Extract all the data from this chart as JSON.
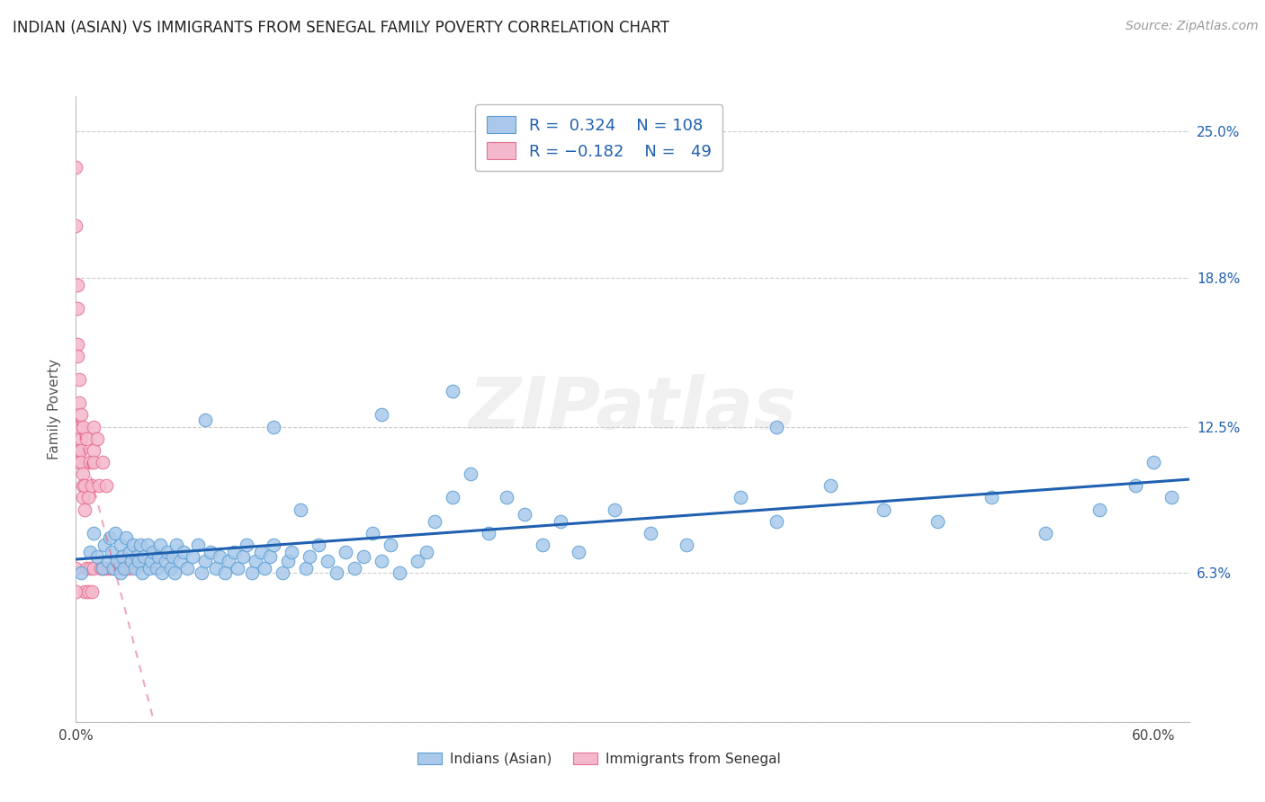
{
  "title": "INDIAN (ASIAN) VS IMMIGRANTS FROM SENEGAL FAMILY POVERTY CORRELATION CHART",
  "source": "Source: ZipAtlas.com",
  "ylabel": "Family Poverty",
  "x_ticks": [
    0.0,
    0.1,
    0.2,
    0.3,
    0.4,
    0.5,
    0.6
  ],
  "x_tick_labels": [
    "0.0%",
    "",
    "",
    "",
    "",
    "",
    "60.0%"
  ],
  "y_ticks": [
    0.0,
    0.063,
    0.125,
    0.188,
    0.25
  ],
  "y_tick_labels_right": [
    "",
    "6.3%",
    "12.5%",
    "18.8%",
    "25.0%"
  ],
  "xlim": [
    0.0,
    0.62
  ],
  "ylim": [
    0.0,
    0.265
  ],
  "blue_R": 0.324,
  "blue_N": 108,
  "pink_R": -0.182,
  "pink_N": 49,
  "blue_color": "#aac9ea",
  "blue_edge_color": "#5a9fd4",
  "blue_line_color": "#2060b0",
  "pink_color": "#f4b8cc",
  "pink_edge_color": "#e87090",
  "pink_line_color": "#e05080",
  "watermark": "ZIPatlas",
  "legend_label_1": "Indians (Asian)",
  "legend_label_2": "Immigrants from Senegal",
  "blue_x": [
    0.003,
    0.008,
    0.01,
    0.012,
    0.015,
    0.016,
    0.018,
    0.019,
    0.02,
    0.021,
    0.022,
    0.023,
    0.025,
    0.025,
    0.026,
    0.027,
    0.028,
    0.03,
    0.031,
    0.032,
    0.033,
    0.034,
    0.035,
    0.036,
    0.037,
    0.038,
    0.04,
    0.041,
    0.042,
    0.043,
    0.045,
    0.046,
    0.047,
    0.048,
    0.05,
    0.051,
    0.053,
    0.054,
    0.055,
    0.056,
    0.058,
    0.06,
    0.062,
    0.065,
    0.068,
    0.07,
    0.072,
    0.075,
    0.078,
    0.08,
    0.083,
    0.085,
    0.088,
    0.09,
    0.093,
    0.095,
    0.098,
    0.1,
    0.103,
    0.105,
    0.108,
    0.11,
    0.115,
    0.118,
    0.12,
    0.125,
    0.128,
    0.13,
    0.135,
    0.14,
    0.145,
    0.15,
    0.155,
    0.16,
    0.165,
    0.17,
    0.175,
    0.18,
    0.19,
    0.195,
    0.2,
    0.21,
    0.22,
    0.23,
    0.24,
    0.25,
    0.26,
    0.27,
    0.28,
    0.3,
    0.32,
    0.34,
    0.37,
    0.39,
    0.42,
    0.45,
    0.48,
    0.51,
    0.54,
    0.57,
    0.59,
    0.61,
    0.072,
    0.11,
    0.17,
    0.21,
    0.39,
    0.6
  ],
  "blue_y": [
    0.063,
    0.072,
    0.08,
    0.07,
    0.065,
    0.075,
    0.068,
    0.078,
    0.072,
    0.065,
    0.08,
    0.068,
    0.075,
    0.063,
    0.07,
    0.065,
    0.078,
    0.072,
    0.068,
    0.075,
    0.065,
    0.07,
    0.068,
    0.075,
    0.063,
    0.07,
    0.075,
    0.065,
    0.068,
    0.072,
    0.065,
    0.07,
    0.075,
    0.063,
    0.068,
    0.072,
    0.065,
    0.07,
    0.063,
    0.075,
    0.068,
    0.072,
    0.065,
    0.07,
    0.075,
    0.063,
    0.068,
    0.072,
    0.065,
    0.07,
    0.063,
    0.068,
    0.072,
    0.065,
    0.07,
    0.075,
    0.063,
    0.068,
    0.072,
    0.065,
    0.07,
    0.075,
    0.063,
    0.068,
    0.072,
    0.09,
    0.065,
    0.07,
    0.075,
    0.068,
    0.063,
    0.072,
    0.065,
    0.07,
    0.08,
    0.068,
    0.075,
    0.063,
    0.068,
    0.072,
    0.085,
    0.095,
    0.105,
    0.08,
    0.095,
    0.088,
    0.075,
    0.085,
    0.072,
    0.09,
    0.08,
    0.075,
    0.095,
    0.085,
    0.1,
    0.09,
    0.085,
    0.095,
    0.08,
    0.09,
    0.1,
    0.095,
    0.128,
    0.125,
    0.13,
    0.14,
    0.125,
    0.11
  ],
  "pink_x": [
    0.0,
    0.0,
    0.0,
    0.001,
    0.001,
    0.001,
    0.001,
    0.002,
    0.002,
    0.002,
    0.002,
    0.002,
    0.003,
    0.003,
    0.003,
    0.003,
    0.004,
    0.004,
    0.004,
    0.004,
    0.005,
    0.005,
    0.005,
    0.006,
    0.006,
    0.007,
    0.007,
    0.008,
    0.008,
    0.009,
    0.009,
    0.01,
    0.01,
    0.01,
    0.01,
    0.012,
    0.013,
    0.014,
    0.015,
    0.015,
    0.016,
    0.017,
    0.018,
    0.02,
    0.022,
    0.025,
    0.028,
    0.03,
    0.0
  ],
  "pink_y": [
    0.235,
    0.21,
    0.065,
    0.185,
    0.175,
    0.16,
    0.155,
    0.145,
    0.135,
    0.125,
    0.115,
    0.11,
    0.13,
    0.12,
    0.115,
    0.11,
    0.125,
    0.105,
    0.1,
    0.095,
    0.1,
    0.09,
    0.055,
    0.12,
    0.065,
    0.095,
    0.055,
    0.11,
    0.065,
    0.1,
    0.055,
    0.125,
    0.115,
    0.11,
    0.065,
    0.12,
    0.1,
    0.065,
    0.11,
    0.065,
    0.065,
    0.1,
    0.065,
    0.065,
    0.065,
    0.065,
    0.065,
    0.065,
    0.055
  ],
  "grid_color": "#cccccc",
  "background_color": "#ffffff",
  "title_fontsize": 12,
  "source_fontsize": 10,
  "axis_label_fontsize": 11,
  "tick_fontsize": 11
}
